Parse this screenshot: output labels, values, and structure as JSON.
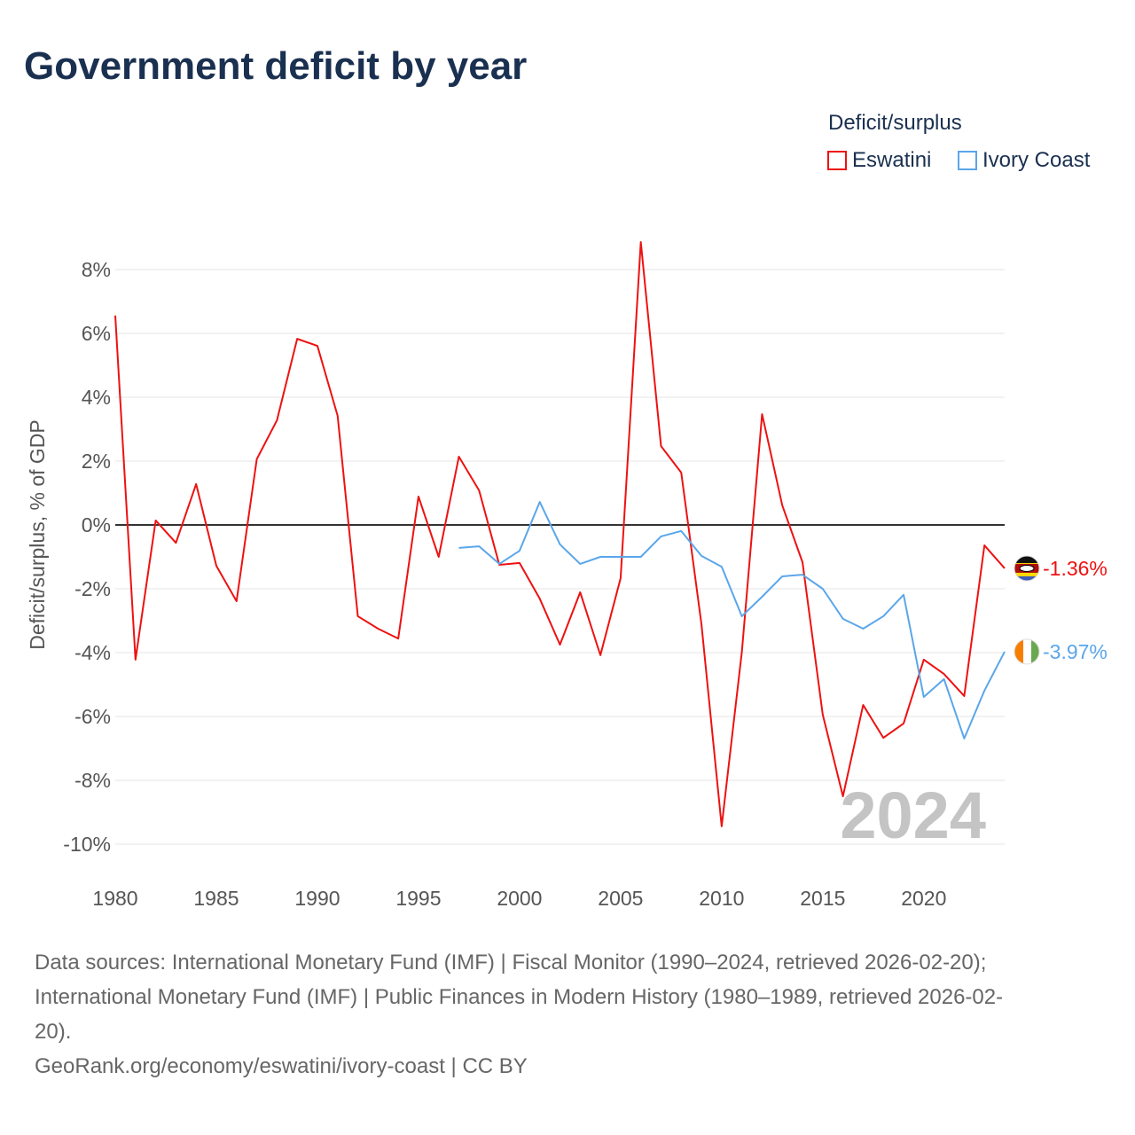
{
  "title": "Government deficit by year",
  "legend": {
    "title": "Deficit/surplus"
  },
  "footer": {
    "line1": "Data sources: International Monetary Fund (IMF) | Fiscal Monitor (1990–2024, retrieved 2026-02-20);",
    "line2": "International Monetary Fund (IMF) | Public Finances in Modern History (1980–1989, retrieved 2026-02-",
    "line3": "20).",
    "line4": "GeoRank.org/economy/eswatini/ivory-coast | CC BY"
  },
  "chart_data": {
    "type": "line",
    "title": "Government deficit by year",
    "ylabel": "Deficit/surplus, % of GDP",
    "xlabel": "",
    "xlim": [
      1980,
      2024
    ],
    "ylim": [
      -10,
      8
    ],
    "x_ticks": [
      1980,
      1985,
      1990,
      1995,
      2000,
      2005,
      2010,
      2015,
      2020
    ],
    "y_ticks": [
      -10,
      -8,
      -6,
      -4,
      -2,
      0,
      2,
      4,
      6,
      8
    ],
    "y_tick_labels": [
      "-10%",
      "-8%",
      "-6%",
      "-4%",
      "-2%",
      "0%",
      "2%",
      "4%",
      "6%",
      "8%"
    ],
    "year_watermark": "2024",
    "legend_position": "top-right",
    "series": [
      {
        "name": "Eswatini",
        "color": "#ee1111",
        "end_label": "-1.36%",
        "x": [
          1980,
          1981,
          1982,
          1983,
          1984,
          1985,
          1986,
          1987,
          1988,
          1989,
          1990,
          1991,
          1992,
          1993,
          1994,
          1995,
          1996,
          1997,
          1998,
          1999,
          2000,
          2001,
          2002,
          2003,
          2004,
          2005,
          2006,
          2007,
          2008,
          2009,
          2010,
          2011,
          2012,
          2013,
          2014,
          2015,
          2016,
          2017,
          2018,
          2019,
          2020,
          2021,
          2022,
          2023,
          2024
        ],
        "values": [
          6.56,
          -4.22,
          0.14,
          -0.56,
          1.28,
          -1.28,
          -2.39,
          2.06,
          3.28,
          5.83,
          5.61,
          3.42,
          -2.86,
          -3.25,
          -3.56,
          0.89,
          -1.0,
          2.14,
          1.08,
          -1.25,
          -1.19,
          -2.31,
          -3.75,
          -2.11,
          -4.08,
          -1.67,
          8.86,
          2.47,
          1.64,
          -3.11,
          -9.44,
          -3.97,
          3.47,
          0.61,
          -1.17,
          -5.94,
          -8.5,
          -5.64,
          -6.67,
          -6.22,
          -4.22,
          -4.67,
          -5.36,
          -0.64,
          -1.36
        ]
      },
      {
        "name": "Ivory Coast",
        "color": "#5aa6ea",
        "end_label": "-3.97%",
        "x": [
          1997,
          1998,
          1999,
          2000,
          2001,
          2002,
          2003,
          2004,
          2005,
          2006,
          2007,
          2008,
          2009,
          2010,
          2011,
          2012,
          2013,
          2014,
          2015,
          2016,
          2017,
          2018,
          2019,
          2020,
          2021,
          2022,
          2023,
          2024
        ],
        "values": [
          -0.72,
          -0.67,
          -1.22,
          -0.81,
          0.72,
          -0.61,
          -1.22,
          -1.0,
          -1.0,
          -1.0,
          -0.36,
          -0.19,
          -0.97,
          -1.31,
          -2.86,
          -2.25,
          -1.61,
          -1.56,
          -2.0,
          -2.94,
          -3.25,
          -2.86,
          -2.19,
          -5.39,
          -4.83,
          -6.69,
          -5.19,
          -3.97
        ]
      }
    ]
  }
}
